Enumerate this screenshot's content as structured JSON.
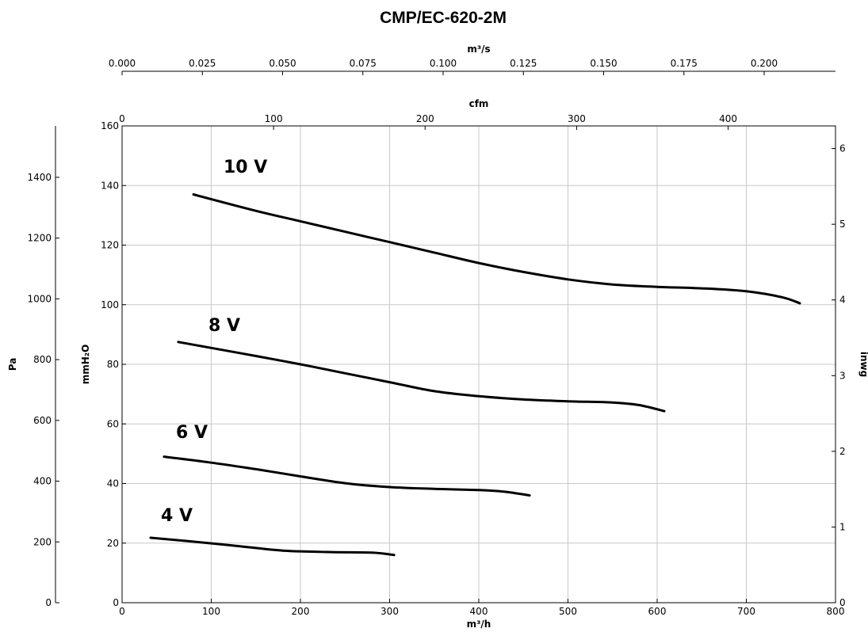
{
  "chart_data": {
    "type": "line",
    "title": "CMP/EC-620-2M",
    "xlabel": "m³/h",
    "x_top_cfm_label": "cfm",
    "x_top_m3s_label": "m³/s",
    "ylabel_mmh2o": "mmH₂O",
    "ylabel_pa": "Pa",
    "ylabel_inwg": "inwg",
    "xlim": [
      0,
      800
    ],
    "ylim": [
      0,
      160
    ],
    "grid": true,
    "x_ticks": [
      0,
      100,
      200,
      300,
      400,
      500,
      600,
      700,
      800
    ],
    "y_ticks_mmh2o": [
      0,
      20,
      40,
      60,
      80,
      100,
      120,
      140,
      160
    ],
    "cfm_ticks": [
      0,
      100,
      200,
      300,
      400
    ],
    "m3s_ticks": [
      "0.000",
      "0.025",
      "0.050",
      "0.075",
      "0.100",
      "0.125",
      "0.150",
      "0.175",
      "0.200"
    ],
    "pa_ticks": [
      0,
      200,
      400,
      600,
      800,
      1000,
      1200,
      1400
    ],
    "inwg_ticks": [
      0,
      1,
      2,
      3,
      4,
      5,
      6
    ],
    "series": [
      {
        "name": "10 V",
        "x": [
          80,
          150,
          200,
          250,
          300,
          350,
          400,
          450,
          500,
          550,
          600,
          650,
          700,
          740,
          760
        ],
        "y": [
          137,
          131.5,
          128,
          124.5,
          121,
          117.5,
          114,
          111,
          108.5,
          106.8,
          106,
          105.5,
          104.5,
          102.5,
          100.5
        ]
      },
      {
        "name": "8 V",
        "x": [
          63,
          100,
          150,
          200,
          250,
          300,
          350,
          400,
          450,
          500,
          550,
          580,
          608
        ],
        "y": [
          87.5,
          85.5,
          82.8,
          80,
          77,
          74,
          71,
          69.3,
          68.2,
          67.6,
          67.2,
          66.3,
          64.3
        ]
      },
      {
        "name": "6 V",
        "x": [
          47,
          100,
          150,
          200,
          250,
          300,
          350,
          400,
          430,
          457
        ],
        "y": [
          49,
          47,
          44.8,
          42.4,
          40.1,
          38.8,
          38.2,
          37.8,
          37.2,
          36
        ]
      },
      {
        "name": "4 V",
        "x": [
          32,
          80,
          130,
          180,
          230,
          280,
          305
        ],
        "y": [
          21.8,
          20.5,
          19,
          17.5,
          17,
          16.8,
          16
        ]
      }
    ]
  }
}
